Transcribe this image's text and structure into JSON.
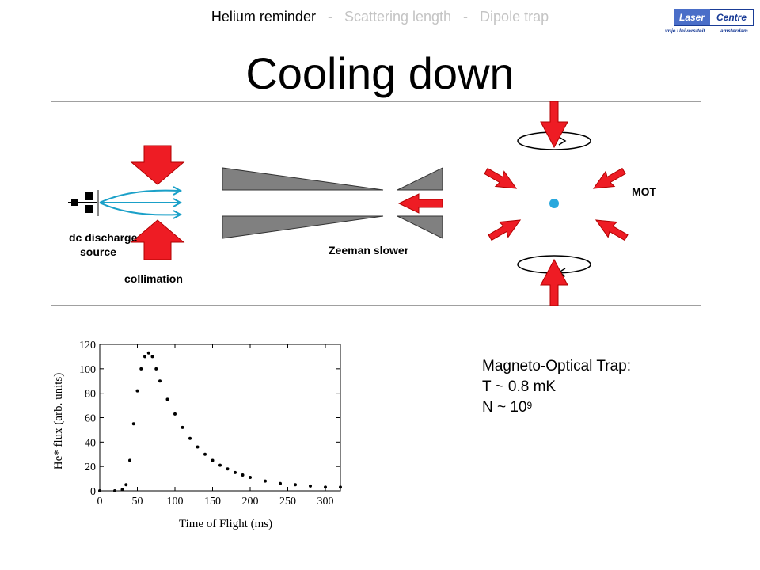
{
  "nav": {
    "items": [
      "Helium reminder",
      "Scattering length",
      "Dipole trap"
    ],
    "active_index": 0,
    "separator": "-"
  },
  "logo": {
    "line1": "Laser",
    "line2": "Centre",
    "line3": "vrije Universiteit",
    "line4": "amsterdam"
  },
  "title": "Cooling down",
  "diagram": {
    "labels": {
      "source_line1": "dc discharge",
      "source_line2": "source",
      "collimation": "collimation",
      "zeeman": "Zeeman slower",
      "mot": "MOT"
    },
    "colors": {
      "arrow": "#ee1c24",
      "cone": "#808080",
      "beam": "#1aa0c8",
      "atom": "#29a8dd",
      "border": "#a0a0a0"
    }
  },
  "info": {
    "heading": "Magneto-Optical Trap:",
    "temperature": "T ~ 0.8 mK",
    "number_base": "N ~ 10",
    "number_exponent": "9"
  },
  "chart_data": {
    "type": "scatter",
    "title": "",
    "xlabel": "Time of Flight (ms)",
    "ylabel": "He* flux (arb. units)",
    "xlim": [
      0,
      320
    ],
    "ylim": [
      0,
      120
    ],
    "xticks": [
      0,
      50,
      100,
      150,
      200,
      250,
      300
    ],
    "yticks": [
      0,
      20,
      40,
      60,
      80,
      100,
      120
    ],
    "grid": false,
    "series": [
      {
        "x": [
          0,
          20,
          30,
          35,
          40,
          45,
          50,
          55,
          60,
          65,
          70,
          75,
          80,
          90,
          100,
          110,
          120,
          130,
          140,
          150,
          160,
          170,
          180,
          190,
          200,
          220,
          240,
          260,
          280,
          300,
          320
        ],
        "y": [
          0,
          0,
          1,
          5,
          25,
          55,
          82,
          100,
          110,
          113,
          110,
          100,
          90,
          75,
          63,
          52,
          43,
          36,
          30,
          25,
          21,
          18,
          15,
          13,
          11,
          8,
          6,
          5,
          4,
          3,
          3
        ]
      }
    ]
  }
}
